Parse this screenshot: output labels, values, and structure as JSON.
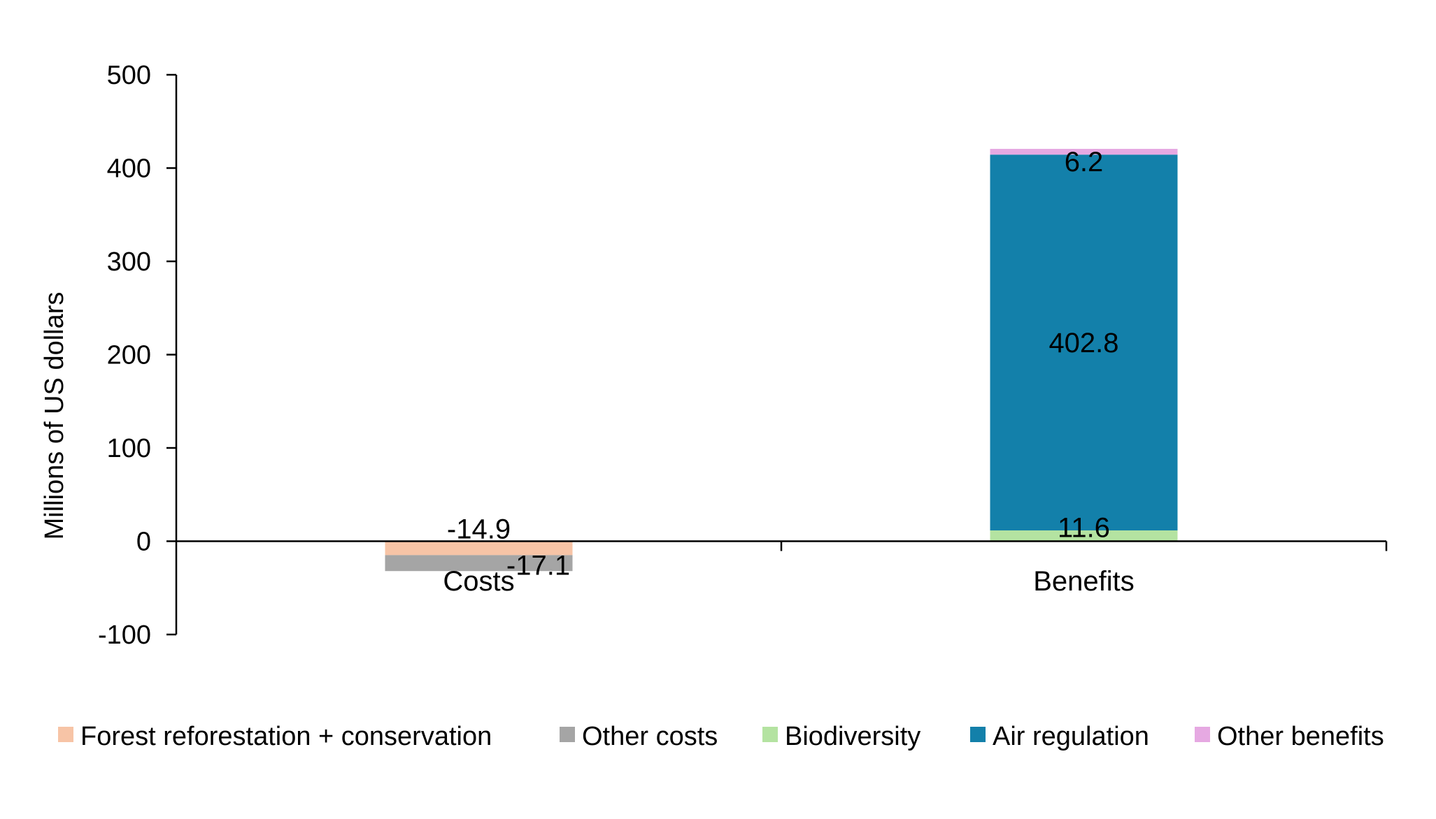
{
  "chart_data": {
    "type": "bar",
    "stacked": true,
    "categories": [
      "Costs",
      "Benefits"
    ],
    "ylabel": "Millions of US dollars",
    "xlabel": "",
    "title": "",
    "ylim": [
      -100,
      500
    ],
    "yticks": [
      500,
      400,
      300,
      200,
      100,
      0,
      -100
    ],
    "legend_position": "bottom",
    "series": [
      {
        "name": "Forest reforestation + conservation",
        "color": "#f7c4a6",
        "values": [
          -14.9,
          0
        ],
        "labels": [
          "-14.9",
          ""
        ]
      },
      {
        "name": "Other costs",
        "color": "#a5a5a5",
        "values": [
          -17.1,
          0
        ],
        "labels": [
          "-17.1",
          ""
        ]
      },
      {
        "name": "Biodiversity",
        "color": "#b4e3a1",
        "values": [
          0,
          11.6
        ],
        "labels": [
          "",
          "11.6"
        ]
      },
      {
        "name": "Air regulation",
        "color": "#1380aa",
        "values": [
          0,
          402.8
        ],
        "labels": [
          "",
          "402.8"
        ]
      },
      {
        "name": "Other benefits",
        "color": "#e6a9e2",
        "values": [
          0,
          6.2
        ],
        "labels": [
          "",
          "6.2"
        ]
      }
    ]
  }
}
